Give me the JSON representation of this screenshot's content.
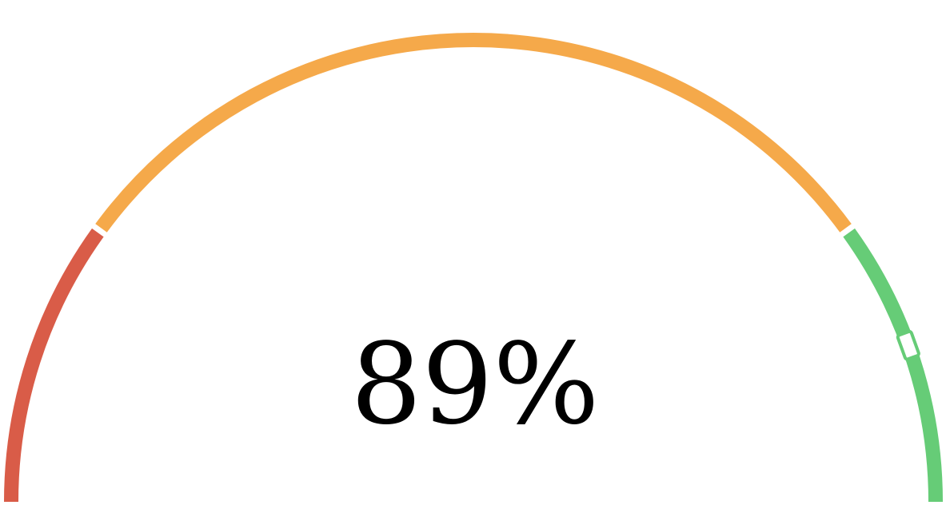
{
  "chart_data": {
    "type": "gauge",
    "value": 89,
    "value_label": "89%",
    "min": 0,
    "max": 100,
    "bands": [
      {
        "from": 0,
        "to": 20,
        "color": "#d95c48"
      },
      {
        "from": 20,
        "to": 80,
        "color": "#f5a94a"
      },
      {
        "from": 80,
        "to": 100,
        "color": "#66cc77"
      }
    ],
    "pointer_color": "#66cc77"
  }
}
